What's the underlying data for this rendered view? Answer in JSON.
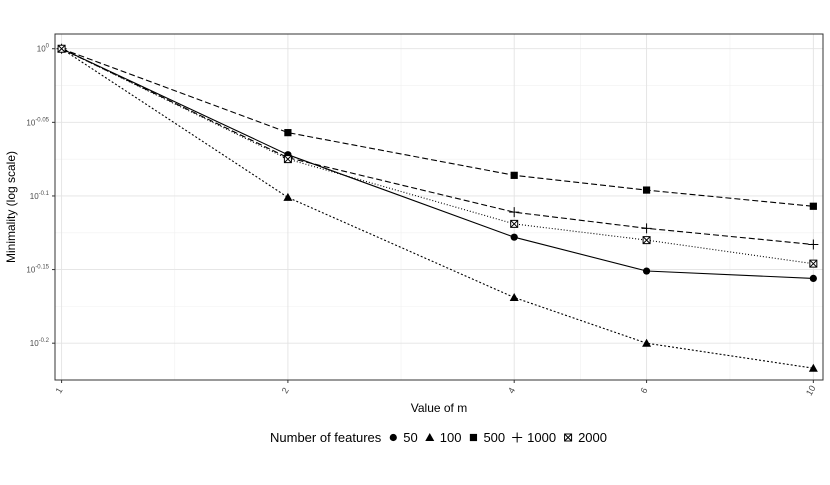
{
  "chart_data": {
    "type": "line",
    "xlabel": "Value of m",
    "ylabel": "Minimality (log scale)",
    "x_scale": "log",
    "y_scale": "log10",
    "x": [
      1,
      2,
      4,
      6,
      10
    ],
    "x_tick_labels": [
      "1",
      "2",
      "4",
      "6",
      "10"
    ],
    "y_ticks": [
      {
        "value": 0,
        "base": "10",
        "exp": "0"
      },
      {
        "value": -0.05,
        "base": "10",
        "exp": "-0.05"
      },
      {
        "value": -0.1,
        "base": "10",
        "exp": "-0.1"
      },
      {
        "value": -0.15,
        "base": "10",
        "exp": "-0.15"
      },
      {
        "value": -0.2,
        "base": "10",
        "exp": "-0.2"
      }
    ],
    "ylim_log10": [
      -0.225,
      0.01
    ],
    "grid": true,
    "legend": {
      "title": "Number of features",
      "position": "bottom"
    },
    "series": [
      {
        "name": "50",
        "marker": "circle",
        "line": "solid",
        "log10_values": [
          0.0,
          -0.072,
          -0.128,
          -0.151,
          -0.156
        ]
      },
      {
        "name": "100",
        "marker": "triangle",
        "line": "dotted",
        "log10_values": [
          0.0,
          -0.101,
          -0.169,
          -0.2,
          -0.217
        ]
      },
      {
        "name": "500",
        "marker": "square",
        "line": "dashed",
        "log10_values": [
          0.0,
          -0.057,
          -0.086,
          -0.096,
          -0.107
        ]
      },
      {
        "name": "1000",
        "marker": "plus",
        "line": "dashed",
        "log10_values": [
          0.0,
          -0.074,
          -0.111,
          -0.122,
          -0.133
        ]
      },
      {
        "name": "2000",
        "marker": "boxed-x",
        "line": "dotted-fine",
        "log10_values": [
          0.0,
          -0.075,
          -0.119,
          -0.13,
          -0.146
        ]
      }
    ]
  }
}
